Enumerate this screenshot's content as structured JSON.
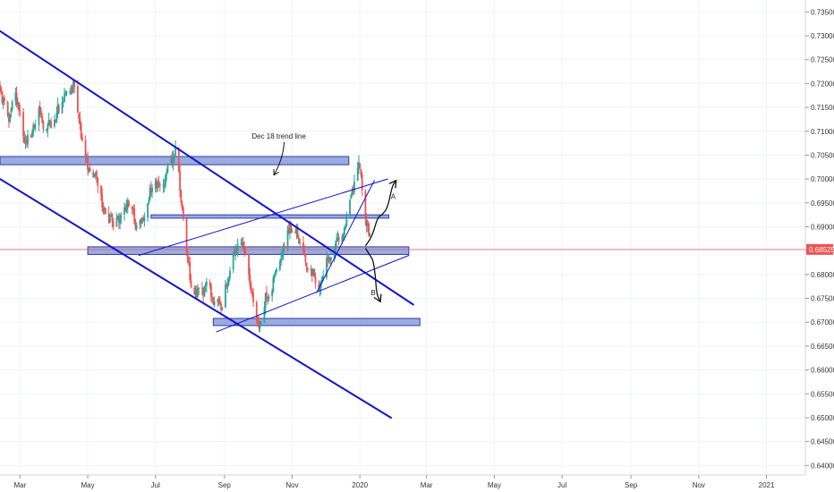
{
  "chart_data": {
    "type": "candlestick",
    "title": "",
    "xlabel": "",
    "ylabel": "",
    "ylim": [
      0.638,
      0.7375
    ],
    "x_range": [
      "2019-02-11",
      "2021-02-05"
    ],
    "grid": true,
    "colors": {
      "up": "#26a69a",
      "down": "#ef5350",
      "zone_fill": "#7b8fd4",
      "zone_stroke": "#2a3db0",
      "trendline": "#1414c8",
      "price_line": "#ef5350",
      "price_tag": "#ef5350"
    },
    "y_ticks": [
      "0.73500",
      "0.73000",
      "0.72500",
      "0.72000",
      "0.71500",
      "0.71000",
      "0.70500",
      "0.70000",
      "0.69500",
      "0.69000",
      "0.68500",
      "0.68000",
      "0.67500",
      "0.67000",
      "0.66500",
      "0.66000",
      "0.65500",
      "0.65000",
      "0.64500",
      "0.64000"
    ],
    "x_ticks": [
      {
        "label": "Mar",
        "date": "2019-03-01"
      },
      {
        "label": "May",
        "date": "2019-05-01"
      },
      {
        "label": "Jul",
        "date": "2019-07-01"
      },
      {
        "label": "Sep",
        "date": "2019-09-01"
      },
      {
        "label": "Nov",
        "date": "2019-11-01"
      },
      {
        "label": "2020",
        "date": "2020-01-01"
      },
      {
        "label": "Mar",
        "date": "2020-03-01"
      },
      {
        "label": "May",
        "date": "2020-05-01"
      },
      {
        "label": "Jul",
        "date": "2020-07-01"
      },
      {
        "label": "Sep",
        "date": "2020-09-01"
      },
      {
        "label": "Nov",
        "date": "2020-11-01"
      },
      {
        "label": "2021",
        "date": "2021-01-01"
      }
    ],
    "current_price": {
      "label": "0.68525",
      "value": 0.68525
    },
    "price_path": [
      [
        "2019-02-11",
        0.7175
      ],
      [
        "2019-02-18",
        0.7125
      ],
      [
        "2019-02-25",
        0.7175
      ],
      [
        "2019-03-04",
        0.709
      ],
      [
        "2019-03-11",
        0.7075
      ],
      [
        "2019-03-18",
        0.716
      ],
      [
        "2019-03-25",
        0.71
      ],
      [
        "2019-04-01",
        0.712
      ],
      [
        "2019-04-08",
        0.7165
      ],
      [
        "2019-04-15",
        0.7175
      ],
      [
        "2019-04-18",
        0.72
      ],
      [
        "2019-04-25",
        0.708
      ],
      [
        "2019-05-02",
        0.702
      ],
      [
        "2019-05-10",
        0.6995
      ],
      [
        "2019-05-17",
        0.692
      ],
      [
        "2019-05-24",
        0.69
      ],
      [
        "2019-06-01",
        0.693
      ],
      [
        "2019-06-08",
        0.696
      ],
      [
        "2019-06-15",
        0.688
      ],
      [
        "2019-06-22",
        0.694
      ],
      [
        "2019-06-29",
        0.7
      ],
      [
        "2019-07-06",
        0.698
      ],
      [
        "2019-07-13",
        0.703
      ],
      [
        "2019-07-19",
        0.706
      ],
      [
        "2019-07-26",
        0.692
      ],
      [
        "2019-08-02",
        0.678
      ],
      [
        "2019-08-09",
        0.676
      ],
      [
        "2019-08-16",
        0.677
      ],
      [
        "2019-08-23",
        0.675
      ],
      [
        "2019-08-30",
        0.673
      ],
      [
        "2019-09-06",
        0.682
      ],
      [
        "2019-09-13",
        0.688
      ],
      [
        "2019-09-20",
        0.684
      ],
      [
        "2019-09-27",
        0.676
      ],
      [
        "2019-10-02",
        0.67
      ],
      [
        "2019-10-09",
        0.676
      ],
      [
        "2019-10-16",
        0.68
      ],
      [
        "2019-10-23",
        0.684
      ],
      [
        "2019-10-30",
        0.6895
      ],
      [
        "2019-11-06",
        0.688
      ],
      [
        "2019-11-13",
        0.682
      ],
      [
        "2019-11-20",
        0.68
      ],
      [
        "2019-11-27",
        0.6775
      ],
      [
        "2019-12-04",
        0.684
      ],
      [
        "2019-12-11",
        0.686
      ],
      [
        "2019-12-18",
        0.69
      ],
      [
        "2019-12-24",
        0.696
      ],
      [
        "2019-12-31",
        0.702
      ],
      [
        "2020-01-03",
        0.698
      ],
      [
        "2020-01-08",
        0.69
      ],
      [
        "2020-01-12",
        0.68525
      ]
    ],
    "zones": [
      {
        "name": "zone-top",
        "from": "2019-02-11",
        "to": "2019-12-22",
        "y1": 0.703,
        "y2": 0.7047
      },
      {
        "name": "zone-mid",
        "from": "2019-06-27",
        "to": "2020-01-27",
        "y1": 0.6918,
        "y2": 0.6925
      },
      {
        "name": "zone-current",
        "from": "2019-05-01",
        "to": "2020-02-14",
        "y1": 0.6842,
        "y2": 0.6858
      },
      {
        "name": "zone-bottom",
        "from": "2019-08-22",
        "to": "2020-02-24",
        "y1": 0.6693,
        "y2": 0.6708
      }
    ],
    "trendlines": [
      {
        "name": "upper-channel-line",
        "width": 2,
        "from": [
          "2019-02-11",
          0.731
        ],
        "to": [
          "2020-02-18",
          0.6737
        ]
      },
      {
        "name": "lower-channel-line",
        "width": 2,
        "from": [
          "2019-02-11",
          0.7
        ],
        "to": [
          "2020-01-29",
          0.65
        ]
      },
      {
        "name": "rising-channel-upper",
        "width": 1,
        "from": [
          "2019-06-16",
          0.684
        ],
        "to": [
          "2020-01-26",
          0.7
        ]
      },
      {
        "name": "rising-channel-lower",
        "width": 1,
        "from": [
          "2019-08-25",
          0.668
        ],
        "to": [
          "2020-02-14",
          0.684
        ]
      },
      {
        "name": "minor-rising-line",
        "width": 1,
        "from": [
          "2019-11-23",
          0.6762
        ],
        "to": [
          "2020-01-14",
          0.6997
        ]
      }
    ],
    "annotations": [
      {
        "text": "Dec 18 trend line",
        "at": [
          "2019-10-20",
          0.7085
        ]
      },
      {
        "text": "A",
        "at": [
          "2020-01-31",
          0.6958
        ]
      },
      {
        "text": "B",
        "at": [
          "2020-01-13",
          0.6757
        ]
      }
    ],
    "scenario_paths": [
      {
        "name": "scenario-a-path",
        "points": [
          [
            "2020-01-06",
            0.686
          ],
          [
            "2020-01-12",
            0.688
          ],
          [
            "2020-01-17",
            0.692
          ],
          [
            "2020-01-21",
            0.6925
          ],
          [
            "2020-01-26",
            0.694
          ],
          [
            "2020-01-30",
            0.6985
          ],
          [
            "2020-02-02",
            0.6995
          ]
        ]
      },
      {
        "name": "scenario-b-path",
        "points": [
          [
            "2020-01-06",
            0.6855
          ],
          [
            "2020-01-10",
            0.684
          ],
          [
            "2020-01-13",
            0.683
          ],
          [
            "2020-01-15",
            0.6795
          ],
          [
            "2020-01-16",
            0.676
          ],
          [
            "2020-01-19",
            0.6745
          ]
        ]
      }
    ]
  }
}
